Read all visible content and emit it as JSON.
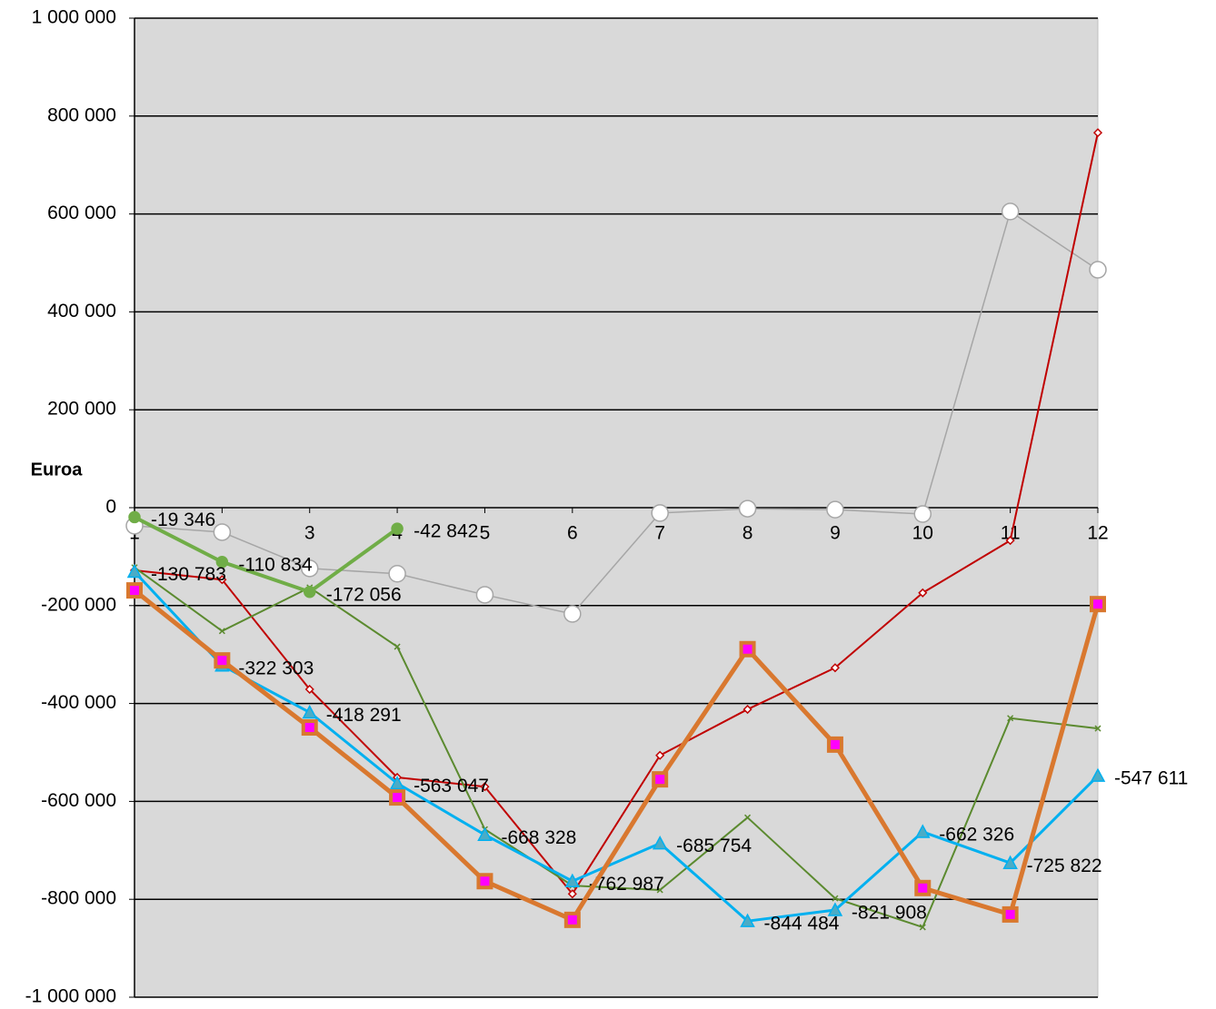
{
  "chart_data": {
    "type": "line",
    "y_label": "Euroa",
    "categories": [
      "1",
      "2",
      "3",
      "4",
      "5",
      "6",
      "7",
      "8",
      "9",
      "10",
      "11",
      "12"
    ],
    "ylim": [
      -1000000,
      1000000
    ],
    "yticks": [
      {
        "value": -1000000,
        "label": "-1 000 000"
      },
      {
        "value": -800000,
        "label": "-800 000"
      },
      {
        "value": -600000,
        "label": "-600 000"
      },
      {
        "value": -400000,
        "label": "-400 000"
      },
      {
        "value": -200000,
        "label": "-200 000"
      },
      0,
      {
        "value": 200000,
        "label": "200 000"
      },
      {
        "value": 400000,
        "label": "400 000"
      },
      {
        "value": 600000,
        "label": "600 000"
      },
      {
        "value": 800000,
        "label": "800 000"
      },
      {
        "value": 1000000,
        "label": "1 000 000"
      }
    ],
    "grid": true,
    "plot_background": "#d9d9d9",
    "series": [
      {
        "color": "#a6a6a6",
        "marker": "circle",
        "marker_color": "#ffffff",
        "line_width": 1.5,
        "values": [
          -37000,
          -50000,
          -124000,
          -135000,
          -178000,
          -217000,
          -11000,
          -2000,
          -4000,
          -13000,
          605000,
          486000
        ]
      },
      {
        "color": "#c00000",
        "marker": "diamond",
        "marker_color": "#ffffff",
        "line_width": 2,
        "values": [
          -128000,
          -147000,
          -371000,
          -551000,
          -570000,
          -789000,
          -506000,
          -412000,
          -327000,
          -174000,
          -67000,
          766000
        ]
      },
      {
        "color": "#5b8a2f",
        "marker": "x",
        "marker_color": "#5b8a2f",
        "line_width": 2,
        "values": [
          -122000,
          -252000,
          -163000,
          -284000,
          -657000,
          -772000,
          -781000,
          -633000,
          -798000,
          -857000,
          -430000,
          -451000
        ]
      },
      {
        "color": "#70ad47",
        "marker": "dot",
        "marker_color": "#70ad47",
        "line_width": 4,
        "values": [
          -19346,
          -110834,
          -172056,
          -42842,
          null,
          null,
          null,
          null,
          null,
          null,
          null,
          null
        ],
        "value_labels": [
          "-19 346",
          "-110 834",
          "-172 056",
          "-42 842",
          null,
          null,
          null,
          null,
          null,
          null,
          null,
          null
        ]
      },
      {
        "color": "#00b0f0",
        "marker": "triangle",
        "marker_color": "#4bacc6",
        "line_width": 3,
        "values": [
          -130783,
          -322303,
          -418291,
          -563047,
          -668328,
          -762987,
          -685754,
          -844484,
          -821908,
          -662326,
          -725822,
          -547611
        ],
        "value_labels": [
          "-130 783",
          "-322 303",
          "-418 291",
          "-563 047",
          "-668 328",
          "-762 987",
          "-685 754",
          "-844 484",
          "-821 908",
          "-662 326",
          "-725 822",
          "-547 611"
        ]
      },
      {
        "color": "#d9782f",
        "marker": "square",
        "marker_color": "#ff00ff",
        "line_width": 5,
        "values": [
          -169000,
          -312000,
          -449000,
          -592000,
          -763000,
          -842000,
          -555000,
          -289000,
          -484000,
          -777000,
          -831000,
          -197000
        ]
      }
    ]
  }
}
